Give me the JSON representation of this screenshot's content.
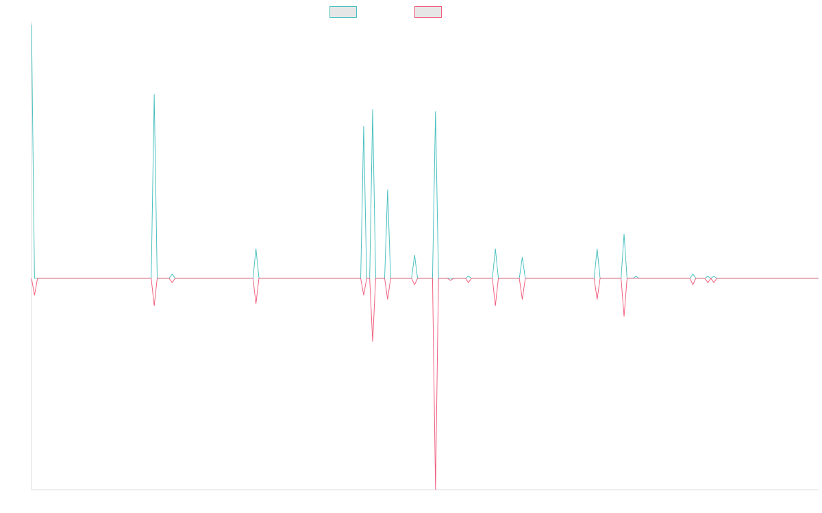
{
  "chart_data": {
    "type": "line",
    "title": "",
    "xlabel": "",
    "ylabel": "",
    "grid": false,
    "legend_position": "top-center",
    "ylim": [
      -1.0,
      1.2
    ],
    "colors": {
      "series_1": "#4bc0c0",
      "series_2": "#f0607e",
      "axis": "#dddddd"
    },
    "series": [
      {
        "color": "#4bc0c0",
        "legend_fill": "#e6e6e6",
        "points": [
          [
            0,
            1.2
          ],
          [
            1,
            0
          ],
          [
            40,
            0
          ],
          [
            41,
            0.87
          ],
          [
            42,
            0
          ],
          [
            46,
            0
          ],
          [
            47,
            0.02
          ],
          [
            48,
            0
          ],
          [
            74,
            0
          ],
          [
            75,
            0.14
          ],
          [
            76,
            0
          ],
          [
            110,
            0
          ],
          [
            111,
            0.72
          ],
          [
            112,
            0
          ],
          [
            113,
            0
          ],
          [
            114,
            0.8
          ],
          [
            115,
            0
          ],
          [
            118,
            0
          ],
          [
            119,
            0.42
          ],
          [
            120,
            0
          ],
          [
            127,
            0
          ],
          [
            128,
            0.11
          ],
          [
            129,
            0
          ],
          [
            134,
            0
          ],
          [
            135,
            0.79
          ],
          [
            136,
            0
          ],
          [
            139,
            0
          ],
          [
            140,
            0
          ],
          [
            141,
            0
          ],
          [
            145,
            0
          ],
          [
            146,
            0.01
          ],
          [
            147,
            0
          ],
          [
            154,
            0
          ],
          [
            155,
            0.14
          ],
          [
            156,
            0
          ],
          [
            163,
            0
          ],
          [
            164,
            0.1
          ],
          [
            165,
            0
          ],
          [
            171,
            0
          ],
          [
            172,
            0
          ],
          [
            177,
            0
          ],
          [
            178,
            0
          ],
          [
            188,
            0
          ],
          [
            189,
            0.14
          ],
          [
            190,
            0
          ],
          [
            197,
            0
          ],
          [
            198,
            0.21
          ],
          [
            199,
            0
          ],
          [
            201,
            0
          ],
          [
            202,
            0.01
          ],
          [
            203,
            0
          ],
          [
            220,
            0
          ],
          [
            221,
            0.02
          ],
          [
            222,
            0
          ],
          [
            225,
            0
          ],
          [
            226,
            0.01
          ],
          [
            227,
            0
          ],
          [
            228,
            0.01
          ],
          [
            229,
            0
          ],
          [
            263,
            0
          ]
        ]
      },
      {
        "color": "#f0607e",
        "legend_fill": "#e6e6e6",
        "points": [
          [
            0,
            0
          ],
          [
            1,
            -0.08
          ],
          [
            2,
            0
          ],
          [
            40,
            0
          ],
          [
            41,
            -0.13
          ],
          [
            42,
            0
          ],
          [
            46,
            0
          ],
          [
            47,
            -0.02
          ],
          [
            48,
            0
          ],
          [
            74,
            0
          ],
          [
            75,
            -0.12
          ],
          [
            76,
            0
          ],
          [
            110,
            0
          ],
          [
            111,
            -0.08
          ],
          [
            112,
            0
          ],
          [
            113,
            0
          ],
          [
            114,
            -0.3
          ],
          [
            115,
            0
          ],
          [
            118,
            0
          ],
          [
            119,
            -0.1
          ],
          [
            120,
            0
          ],
          [
            127,
            0
          ],
          [
            128,
            -0.03
          ],
          [
            129,
            0
          ],
          [
            134,
            0
          ],
          [
            135,
            -1.0
          ],
          [
            136,
            0
          ],
          [
            139,
            0
          ],
          [
            140,
            -0.01
          ],
          [
            141,
            0
          ],
          [
            145,
            0
          ],
          [
            146,
            -0.02
          ],
          [
            147,
            0
          ],
          [
            154,
            0
          ],
          [
            155,
            -0.13
          ],
          [
            156,
            0
          ],
          [
            163,
            0
          ],
          [
            164,
            -0.1
          ],
          [
            165,
            0
          ],
          [
            171,
            0
          ],
          [
            172,
            0
          ],
          [
            177,
            0
          ],
          [
            178,
            0
          ],
          [
            188,
            0
          ],
          [
            189,
            -0.1
          ],
          [
            190,
            0
          ],
          [
            197,
            0
          ],
          [
            198,
            -0.18
          ],
          [
            199,
            0
          ],
          [
            201,
            0
          ],
          [
            202,
            0
          ],
          [
            203,
            0
          ],
          [
            220,
            0
          ],
          [
            221,
            -0.03
          ],
          [
            222,
            0
          ],
          [
            225,
            0
          ],
          [
            226,
            -0.02
          ],
          [
            227,
            0
          ],
          [
            228,
            -0.02
          ],
          [
            229,
            0
          ],
          [
            263,
            0
          ]
        ]
      }
    ]
  }
}
